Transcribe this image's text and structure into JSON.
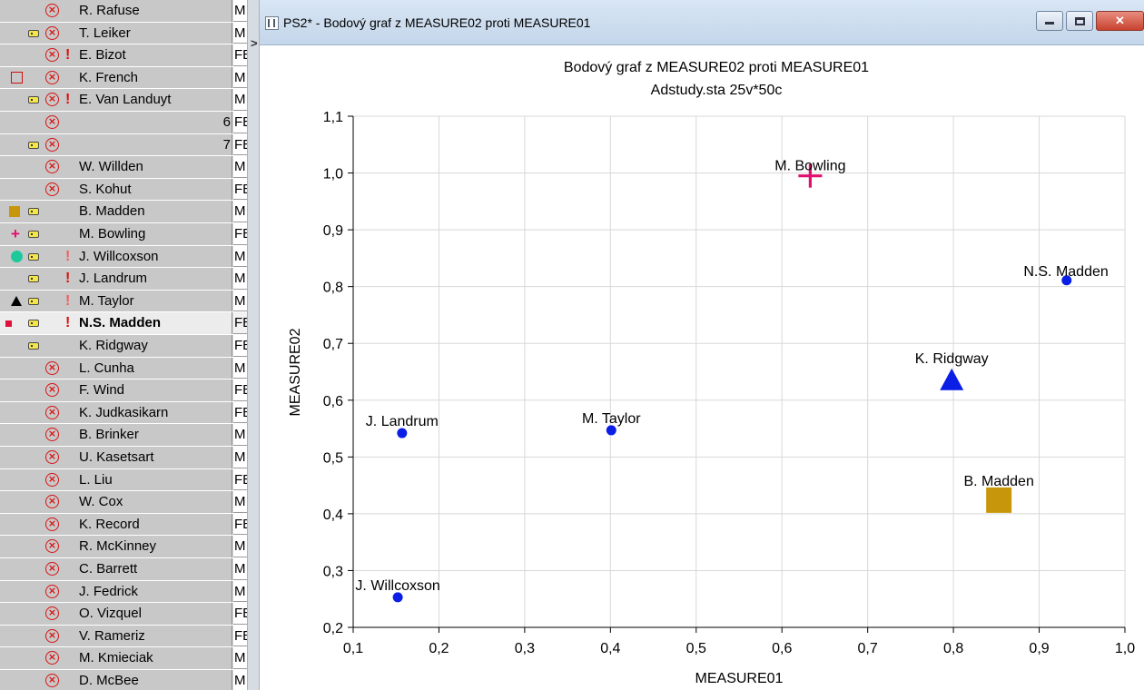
{
  "window": {
    "title": "PS2* - Bodový graf z MEASURE02 proti MEASURE01",
    "buttons": {
      "minimize": "minimize",
      "maximize": "maximize",
      "close": "close"
    }
  },
  "sheet": {
    "rows": [
      {
        "icons": [
          "x"
        ],
        "name": "R. Rafuse",
        "col": "M"
      },
      {
        "icons": [
          "label",
          "x"
        ],
        "name": "T. Leiker",
        "col": "M"
      },
      {
        "icons": [
          "x",
          "exclaim"
        ],
        "name": "E. Bizot",
        "col": "FE"
      },
      {
        "icons": [
          "hollow-square",
          "x"
        ],
        "name": "K. French",
        "col": "M"
      },
      {
        "icons": [
          "label",
          "x",
          "exclaim"
        ],
        "name": "E. Van Landuyt",
        "col": "M"
      },
      {
        "icons": [
          "x"
        ],
        "name": "",
        "number": "6",
        "col": "FE"
      },
      {
        "icons": [
          "label",
          "x"
        ],
        "name": "",
        "number": "7",
        "col": "FE"
      },
      {
        "icons": [
          "x"
        ],
        "name": "W. Willden",
        "col": "M"
      },
      {
        "icons": [
          "x"
        ],
        "name": "S. Kohut",
        "col": "FE"
      },
      {
        "icons": [
          "square",
          "label"
        ],
        "name": "B. Madden",
        "col": "M"
      },
      {
        "icons": [
          "plus",
          "label"
        ],
        "name": "M. Bowling",
        "col": "FE"
      },
      {
        "icons": [
          "circle",
          "label",
          "exclaim-light"
        ],
        "name": "J. Willcoxson",
        "col": "M"
      },
      {
        "icons": [
          "label",
          "exclaim"
        ],
        "name": "J. Landrum",
        "col": "M"
      },
      {
        "icons": [
          "triangle",
          "label",
          "exclaim-light"
        ],
        "name": "M. Taylor",
        "col": "M"
      },
      {
        "icons": [
          "small-square",
          "label",
          "exclaim"
        ],
        "name": "N.S. Madden",
        "col": "FE",
        "selected": true
      },
      {
        "icons": [
          "label"
        ],
        "name": "K. Ridgway",
        "col": "FE"
      },
      {
        "icons": [
          "x"
        ],
        "name": "L. Cunha",
        "col": "M"
      },
      {
        "icons": [
          "x"
        ],
        "name": "F. Wind",
        "col": "FE"
      },
      {
        "icons": [
          "x"
        ],
        "name": "K. Judkasikarn",
        "col": "FE"
      },
      {
        "icons": [
          "x"
        ],
        "name": "B. Brinker",
        "col": "M"
      },
      {
        "icons": [
          "x"
        ],
        "name": "U. Kasetsart",
        "col": "M"
      },
      {
        "icons": [
          "x"
        ],
        "name": "L. Liu",
        "col": "FE"
      },
      {
        "icons": [
          "x"
        ],
        "name": "W. Cox",
        "col": "M"
      },
      {
        "icons": [
          "x"
        ],
        "name": "K. Record",
        "col": "FE"
      },
      {
        "icons": [
          "x"
        ],
        "name": "R. McKinney",
        "col": "M"
      },
      {
        "icons": [
          "x"
        ],
        "name": "C. Barrett",
        "col": "M"
      },
      {
        "icons": [
          "x"
        ],
        "name": "J. Fedrick",
        "col": "M"
      },
      {
        "icons": [
          "x"
        ],
        "name": "O. Vizquel",
        "col": "FE"
      },
      {
        "icons": [
          "x"
        ],
        "name": "V. Rameriz",
        "col": "FE"
      },
      {
        "icons": [
          "x"
        ],
        "name": "M. Kmieciak",
        "col": "M"
      },
      {
        "icons": [
          "x"
        ],
        "name": "D. McBee",
        "col": "M"
      }
    ]
  },
  "chart_data": {
    "type": "scatter",
    "title": "Bodový graf z MEASURE02 proti MEASURE01",
    "subtitle": "Adstudy.sta 25v*50c",
    "xlabel": "MEASURE01",
    "ylabel": "MEASURE02",
    "xlim": [
      0.1,
      1.0
    ],
    "ylim": [
      0.2,
      1.1
    ],
    "xticks": [
      "0,1",
      "0,2",
      "0,3",
      "0,4",
      "0,5",
      "0,6",
      "0,7",
      "0,8",
      "0,9",
      "1,0"
    ],
    "yticks": [
      "0,2",
      "0,3",
      "0,4",
      "0,5",
      "0,6",
      "0,7",
      "0,8",
      "0,9",
      "1,0",
      "1,1"
    ],
    "grid": true,
    "points": [
      {
        "label": "M. Bowling",
        "x": 0.633,
        "y": 0.995,
        "marker": "plus",
        "color": "#e0106e"
      },
      {
        "label": "N.S. Madden",
        "x": 0.932,
        "y": 0.811,
        "marker": "dot",
        "color": "#0a1ee6"
      },
      {
        "label": "K. Ridgway",
        "x": 0.798,
        "y": 0.632,
        "marker": "triangle",
        "color": "#0a1ee6"
      },
      {
        "label": "J. Landrum",
        "x": 0.157,
        "y": 0.542,
        "marker": "dot",
        "color": "#0a1ee6"
      },
      {
        "label": "M. Taylor",
        "x": 0.401,
        "y": 0.547,
        "marker": "dot",
        "color": "#0a1ee6"
      },
      {
        "label": "B. Madden",
        "x": 0.853,
        "y": 0.424,
        "marker": "square",
        "color": "#c8960a"
      },
      {
        "label": "J. Willcoxson",
        "x": 0.152,
        "y": 0.253,
        "marker": "dot",
        "color": "#0a1ee6"
      }
    ]
  }
}
